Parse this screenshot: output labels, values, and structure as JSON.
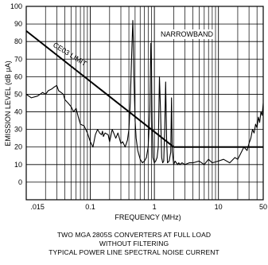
{
  "chart_data": {
    "type": "line",
    "x_scale": "log",
    "xlim": [
      0.01,
      50
    ],
    "ylim": [
      -10,
      100
    ],
    "x_ticks": [
      {
        "value": 0.015,
        "label": ".015"
      },
      {
        "value": 0.1,
        "label": "0.1"
      },
      {
        "value": 1,
        "label": "1"
      },
      {
        "value": 10,
        "label": "10"
      },
      {
        "value": 50,
        "label": "50"
      }
    ],
    "y_ticks": [
      0,
      10,
      20,
      30,
      40,
      50,
      60,
      70,
      80,
      90,
      100
    ],
    "xlabel": "FREQUENCY (MHz)",
    "ylabel": "EMISSION LEVEL (dB μA)",
    "grid": true,
    "annotations": {
      "narrowband": "NARROWBAND",
      "limit_label": "CE03 LIMIT"
    },
    "series": [
      {
        "name": "CE03 LIMIT",
        "x": [
          0.01,
          2,
          50
        ],
        "y": [
          86,
          20,
          20
        ]
      },
      {
        "x": [
          0.01,
          0.012,
          0.015,
          0.018,
          0.02,
          0.022,
          0.025,
          0.027,
          0.03,
          0.032,
          0.035,
          0.038,
          0.04,
          0.045,
          0.05,
          0.055,
          0.06,
          0.065,
          0.07,
          0.08,
          0.09,
          0.1,
          0.11,
          0.12,
          0.13,
          0.14,
          0.15,
          0.155,
          0.16,
          0.17,
          0.19,
          0.2,
          0.22,
          0.25,
          0.27,
          0.3,
          0.32,
          0.35,
          0.38,
          0.4,
          0.42,
          0.44,
          0.46,
          0.47,
          0.48,
          0.5,
          0.52,
          0.55,
          0.6,
          0.65,
          0.7,
          0.75,
          0.8,
          0.85,
          0.88,
          0.9,
          0.92,
          0.95,
          1.0,
          1.05,
          1.1,
          1.15,
          1.2,
          1.25,
          1.3,
          1.35,
          1.4,
          1.45,
          1.5,
          1.55,
          1.6,
          1.7,
          1.8,
          1.85,
          1.9,
          2.0,
          2.1,
          2.2,
          2.3,
          2.4,
          2.5,
          2.7,
          3.0,
          3.5,
          4,
          5,
          6,
          7,
          8,
          10,
          12,
          15,
          18,
          20,
          22,
          25,
          28,
          30,
          32,
          34,
          36,
          38,
          40,
          42,
          44,
          46,
          48,
          50
        ],
        "y": [
          50,
          48,
          49,
          51,
          50,
          52,
          53,
          54,
          55,
          52,
          51,
          50,
          47,
          45,
          43,
          40,
          42,
          37,
          33,
          32,
          28,
          23,
          20,
          27,
          30,
          28,
          27,
          29,
          26,
          28,
          27,
          23,
          30,
          25,
          28,
          22,
          23,
          20,
          24,
          30,
          45,
          70,
          92,
          80,
          60,
          35,
          25,
          18,
          13,
          11,
          12,
          14,
          20,
          40,
          79,
          70,
          35,
          14,
          11,
          12,
          14,
          20,
          60,
          40,
          14,
          11,
          12,
          30,
          57,
          25,
          11,
          12,
          17,
          48,
          18,
          10,
          12,
          11,
          10,
          11,
          10,
          11,
          10,
          11,
          11,
          12,
          10,
          13,
          11,
          12,
          13,
          11,
          14,
          13,
          16,
          20,
          18,
          22,
          25,
          30,
          28,
          33,
          31,
          37,
          34,
          40,
          38,
          45
        ]
      }
    ]
  },
  "caption": {
    "line1": "TWO MGA 2805S CONVERTERS AT FULL LOAD",
    "line2": "WITHOUT FILTERING",
    "line3": "TYPICAL POWER LINE SPECTRAL NOISE CURRENT"
  }
}
